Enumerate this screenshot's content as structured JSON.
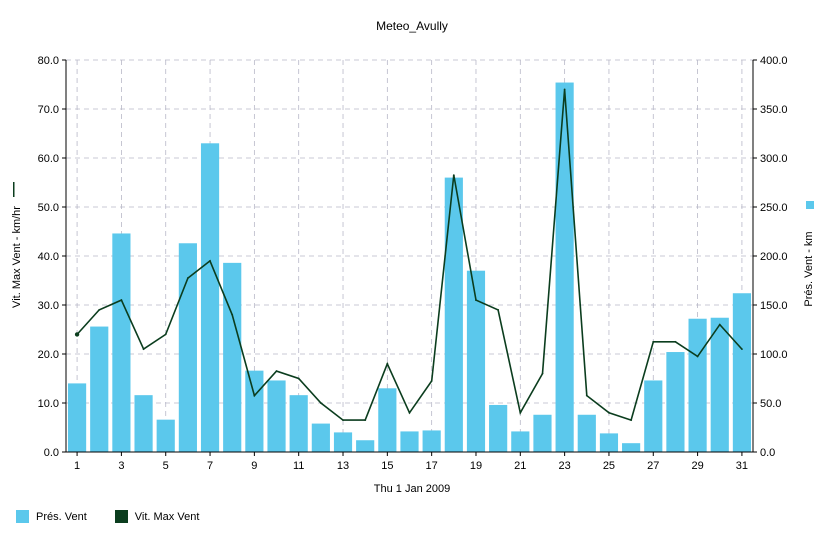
{
  "chart_data": {
    "type": "bar",
    "title": "Meteo_Avully",
    "xlabel": "Thu 1 Jan 2009",
    "ylabel_left": "Vit. Max Vent - km/hr",
    "ylabel_right": "Prés. Vent - km",
    "ylim_left": [
      0,
      80
    ],
    "ylim_right": [
      0,
      400
    ],
    "yticks_left": [
      "0.0",
      "10.0",
      "20.0",
      "30.0",
      "40.0",
      "50.0",
      "60.0",
      "70.0",
      "80.0"
    ],
    "yticks_right": [
      "0.0",
      "50.0",
      "100.0",
      "150.0",
      "200.0",
      "250.0",
      "300.0",
      "350.0",
      "400.0"
    ],
    "xticks": [
      "1",
      "3",
      "5",
      "7",
      "9",
      "11",
      "13",
      "15",
      "17",
      "19",
      "21",
      "23",
      "25",
      "27",
      "29",
      "31"
    ],
    "grid": true,
    "legend_position": "bottom-left",
    "x": [
      1,
      2,
      3,
      4,
      5,
      6,
      7,
      8,
      9,
      10,
      11,
      12,
      13,
      14,
      15,
      16,
      17,
      18,
      19,
      20,
      21,
      22,
      23,
      24,
      25,
      26,
      27,
      28,
      29,
      30,
      31
    ],
    "series": [
      {
        "name": "Prés. Vent",
        "kind": "bar",
        "axis": "right",
        "color": "#5bc8ec",
        "values": [
          70,
          128,
          223,
          58,
          33,
          213,
          315,
          193,
          83,
          73,
          58,
          29,
          20,
          12,
          65,
          21,
          22,
          280,
          185,
          48,
          21,
          38,
          377,
          38,
          19,
          9,
          73,
          102,
          136,
          137,
          162
        ]
      },
      {
        "name": "Vit. Max Vent",
        "kind": "line",
        "axis": "left",
        "color": "#0b3d1e",
        "values": [
          24,
          29,
          31,
          21,
          24,
          35.5,
          39,
          28,
          11.5,
          16.5,
          15,
          10,
          6.5,
          6.5,
          18,
          8,
          14.5,
          56.5,
          31,
          29,
          8,
          16,
          74,
          11.5,
          8,
          6.5,
          22.5,
          22.5,
          19.5,
          26,
          21
        ]
      }
    ]
  }
}
